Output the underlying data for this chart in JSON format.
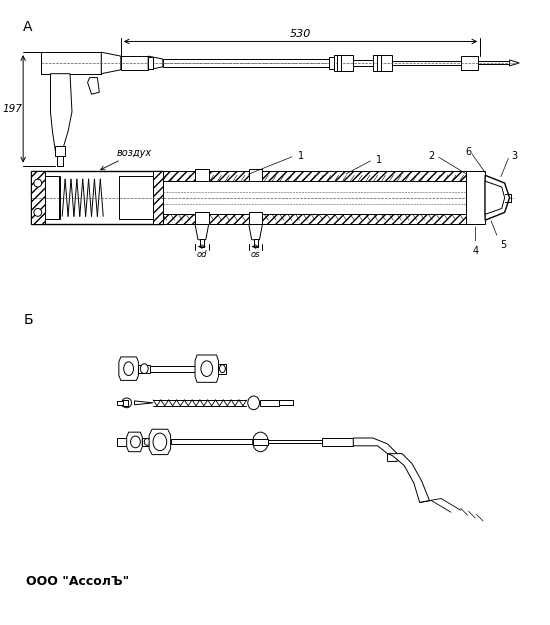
{
  "title_A": "А",
  "title_B": "Б",
  "label_530": "530",
  "label_197": "197",
  "label_vozduh": "воздух",
  "label_company": "ООО \"АссолЪ\"",
  "dim_od": "od",
  "dim_os": "os",
  "bg_color": "#ffffff",
  "lc": "#000000",
  "dc": "#555555",
  "hatch_color": "#cccccc",
  "fig_w": 5.5,
  "fig_h": 6.25,
  "dpi": 100
}
